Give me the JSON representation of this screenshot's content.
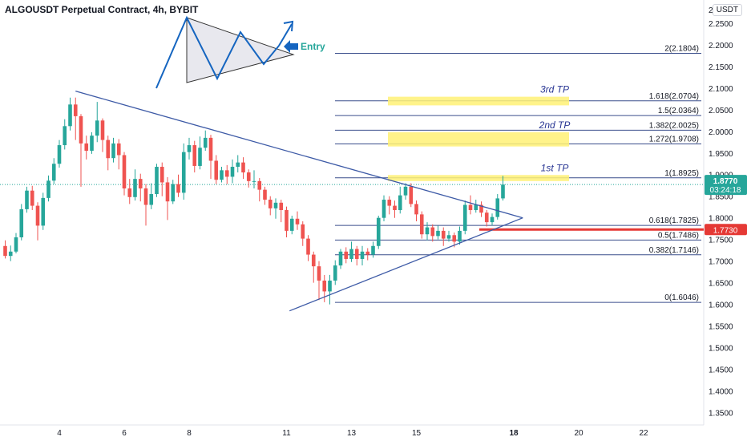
{
  "header": {
    "title": "ALGOUSDT Perpetual Contract, 4h, BYBIT",
    "currency": "USDT"
  },
  "colors": {
    "up": "#26a69a",
    "down": "#ef5350",
    "fib_line": "#3a4e8c",
    "tp_zone": "#fff176",
    "trendline": "#3d5aa6",
    "entry": "#1565c0",
    "price_label_bg": "#26a69a",
    "red_label_bg": "#e53935"
  },
  "chart_data": {
    "type": "candlestick",
    "title": "ALGOUSDT Perpetual Contract, 4h, BYBIT",
    "x_tick_labels": [
      {
        "label": "4",
        "bar": 10
      },
      {
        "label": "6",
        "bar": 22
      },
      {
        "label": "8",
        "bar": 34
      },
      {
        "label": "11",
        "bar": 52
      },
      {
        "label": "13",
        "bar": 64
      },
      {
        "label": "15",
        "bar": 76
      },
      {
        "label": "18",
        "bar": 94
      },
      {
        "label": "20",
        "bar": 106
      },
      {
        "label": "22",
        "bar": 118
      }
    ],
    "y_ticks": [
      "2.2500",
      "2.2000",
      "2.1500",
      "2.1000",
      "2.0500",
      "2.0000",
      "1.9500",
      "1.9000",
      "1.8500",
      "1.8000",
      "1.7500",
      "1.7000",
      "1.6500",
      "1.6000",
      "1.5500",
      "1.5000",
      "1.4500",
      "1.4000",
      "1.3500"
    ],
    "y_top_label": "2",
    "ylim": [
      1.325,
      2.285
    ],
    "candles": [
      [
        1.735,
        1.712,
        1.748,
        1.706
      ],
      [
        1.712,
        1.722,
        1.736,
        1.7
      ],
      [
        1.722,
        1.755,
        1.765,
        1.718
      ],
      [
        1.755,
        1.82,
        1.832,
        1.748
      ],
      [
        1.82,
        1.863,
        1.872,
        1.812
      ],
      [
        1.863,
        1.828,
        1.874,
        1.818
      ],
      [
        1.828,
        1.782,
        1.836,
        1.748
      ],
      [
        1.782,
        1.846,
        1.858,
        1.772
      ],
      [
        1.846,
        1.886,
        1.898,
        1.838
      ],
      [
        1.886,
        1.925,
        1.938,
        1.878
      ],
      [
        1.925,
        1.968,
        1.98,
        1.916
      ],
      [
        1.968,
        2.012,
        2.028,
        1.958
      ],
      [
        2.012,
        2.062,
        2.078,
        2.002
      ],
      [
        2.062,
        2.035,
        2.078,
        1.98
      ],
      [
        2.035,
        1.972,
        2.04,
        1.872
      ],
      [
        1.972,
        1.955,
        1.99,
        1.935
      ],
      [
        1.955,
        1.99,
        1.998,
        1.948
      ],
      [
        1.99,
        2.025,
        2.068,
        1.975
      ],
      [
        2.025,
        1.98,
        2.03,
        1.952
      ],
      [
        1.98,
        1.938,
        1.99,
        1.91
      ],
      [
        1.938,
        1.972,
        1.985,
        1.928
      ],
      [
        1.972,
        1.945,
        1.982,
        1.912
      ],
      [
        1.945,
        1.868,
        1.952,
        1.852
      ],
      [
        1.868,
        1.848,
        1.89,
        1.832
      ],
      [
        1.848,
        1.89,
        1.912,
        1.84
      ],
      [
        1.89,
        1.868,
        1.902,
        1.838
      ],
      [
        1.868,
        1.83,
        1.878,
        1.782
      ],
      [
        1.83,
        1.855,
        1.88,
        1.82
      ],
      [
        1.855,
        1.918,
        1.925,
        1.848
      ],
      [
        1.918,
        1.882,
        1.928,
        1.85
      ],
      [
        1.882,
        1.838,
        1.894,
        1.795
      ],
      [
        1.838,
        1.878,
        1.888,
        1.832
      ],
      [
        1.878,
        1.858,
        1.9,
        1.848
      ],
      [
        1.858,
        1.952,
        1.972,
        1.842
      ],
      [
        1.952,
        1.968,
        1.985,
        1.935
      ],
      [
        1.968,
        1.92,
        1.978,
        1.905
      ],
      [
        1.92,
        1.962,
        1.988,
        1.912
      ],
      [
        1.962,
        1.985,
        2.002,
        1.955
      ],
      [
        1.985,
        1.932,
        1.992,
        1.89
      ],
      [
        1.932,
        1.888,
        1.945,
        1.878
      ],
      [
        1.888,
        1.91,
        1.918,
        1.882
      ],
      [
        1.91,
        1.895,
        1.922,
        1.878
      ],
      [
        1.895,
        1.918,
        1.935,
        1.88
      ],
      [
        1.918,
        1.928,
        1.945,
        1.905
      ],
      [
        1.928,
        1.905,
        1.94,
        1.89
      ],
      [
        1.905,
        1.885,
        1.912,
        1.87
      ],
      [
        1.885,
        1.885,
        1.91,
        1.868
      ],
      [
        1.885,
        1.865,
        1.892,
        1.838
      ],
      [
        1.865,
        1.842,
        1.872,
        1.83
      ],
      [
        1.842,
        1.822,
        1.85,
        1.806
      ],
      [
        1.822,
        1.835,
        1.845,
        1.798
      ],
      [
        1.835,
        1.818,
        1.842,
        1.79
      ],
      [
        1.818,
        1.77,
        1.826,
        1.755
      ],
      [
        1.77,
        1.798,
        1.805,
        1.762
      ],
      [
        1.798,
        1.785,
        1.815,
        1.772
      ],
      [
        1.785,
        1.752,
        1.792,
        1.735
      ],
      [
        1.752,
        1.715,
        1.76,
        1.7
      ],
      [
        1.715,
        1.688,
        1.722,
        1.65
      ],
      [
        1.688,
        1.655,
        1.7,
        1.61
      ],
      [
        1.655,
        1.63,
        1.668,
        1.605
      ],
      [
        1.63,
        1.655,
        1.668,
        1.6
      ],
      [
        1.655,
        1.69,
        1.702,
        1.645
      ],
      [
        1.69,
        1.722,
        1.728,
        1.682
      ],
      [
        1.722,
        1.705,
        1.732,
        1.695
      ],
      [
        1.705,
        1.728,
        1.745,
        1.698
      ],
      [
        1.728,
        1.705,
        1.735,
        1.69
      ],
      [
        1.705,
        1.722,
        1.735,
        1.69
      ],
      [
        1.722,
        1.715,
        1.73,
        1.702
      ],
      [
        1.715,
        1.735,
        1.745,
        1.708
      ],
      [
        1.735,
        1.8,
        1.805,
        1.728
      ],
      [
        1.8,
        1.842,
        1.852,
        1.792
      ],
      [
        1.842,
        1.828,
        1.85,
        1.808
      ],
      [
        1.828,
        1.818,
        1.84,
        1.8
      ],
      [
        1.818,
        1.852,
        1.872,
        1.81
      ],
      [
        1.852,
        1.872,
        1.88,
        1.842
      ],
      [
        1.872,
        1.832,
        1.88,
        1.825
      ],
      [
        1.832,
        1.808,
        1.84,
        1.792
      ],
      [
        1.808,
        1.762,
        1.815,
        1.752
      ],
      [
        1.762,
        1.778,
        1.79,
        1.748
      ],
      [
        1.778,
        1.758,
        1.785,
        1.745
      ],
      [
        1.758,
        1.77,
        1.782,
        1.75
      ],
      [
        1.77,
        1.752,
        1.778,
        1.735
      ],
      [
        1.752,
        1.76,
        1.77,
        1.745
      ],
      [
        1.76,
        1.745,
        1.766,
        1.732
      ],
      [
        1.745,
        1.77,
        1.78,
        1.738
      ],
      [
        1.77,
        1.83,
        1.84,
        1.762
      ],
      [
        1.83,
        1.818,
        1.852,
        1.808
      ],
      [
        1.818,
        1.83,
        1.842,
        1.812
      ],
      [
        1.83,
        1.812,
        1.838,
        1.802
      ],
      [
        1.812,
        1.79,
        1.818,
        1.78
      ],
      [
        1.79,
        1.802,
        1.81,
        1.782
      ],
      [
        1.802,
        1.845,
        1.855,
        1.796
      ],
      [
        1.845,
        1.877,
        1.897,
        1.84
      ]
    ],
    "fib_levels": [
      {
        "label": "2(2.1804)",
        "value": 2.1804
      },
      {
        "label": "1.618(2.0704)",
        "value": 2.0704
      },
      {
        "label": "1.5(2.0364)",
        "value": 2.0364
      },
      {
        "label": "1.382(2.0025)",
        "value": 2.0025
      },
      {
        "label": "1.272(1.9708)",
        "value": 1.9708
      },
      {
        "label": "1(1.8925)",
        "value": 1.8925
      },
      {
        "label": "0.618(1.7825)",
        "value": 1.7825
      },
      {
        "label": "0.5(1.7486)",
        "value": 1.7486
      },
      {
        "label": "0.382(1.7146)",
        "value": 1.7146
      },
      {
        "label": "0(1.6046)",
        "value": 1.6046
      }
    ],
    "tp_zones": [
      {
        "label": "3rd TP",
        "low": 2.06,
        "high": 2.08
      },
      {
        "label": "2nd TP",
        "low": 1.965,
        "high": 1.998
      },
      {
        "label": "1st TP",
        "low": 1.885,
        "high": 1.899
      }
    ],
    "current_price": {
      "value": 1.877,
      "label": "1.8770",
      "countdown": "03:24:18"
    },
    "marked_level": {
      "value": 1.773,
      "label": "1.7730"
    },
    "annotation": {
      "text": "Entry"
    }
  }
}
